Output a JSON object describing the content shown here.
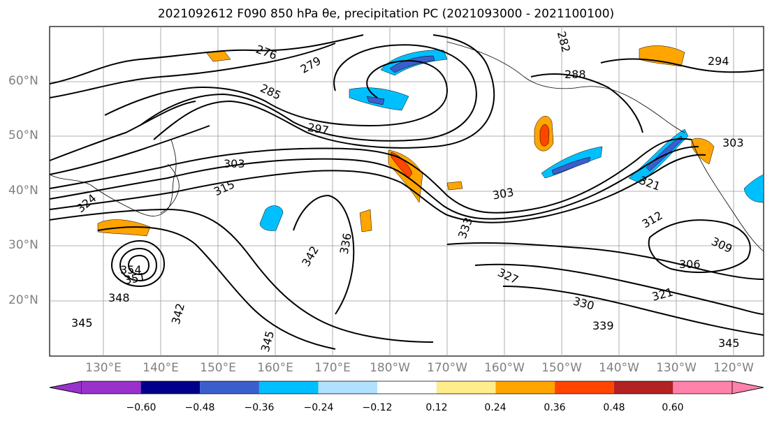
{
  "title": "2021092612 F090 850 hPa θe, precipitation PC (2021093000 - 2021100100)",
  "lat_labels": [
    "60°N",
    "50°N",
    "40°N",
    "30°N",
    "20°N"
  ],
  "lon_labels": [
    "130°E",
    "140°E",
    "150°E",
    "160°E",
    "170°E",
    "180°W",
    "170°W",
    "160°W",
    "150°W",
    "140°W",
    "130°W",
    "120°W"
  ],
  "contour_labels": [
    "276",
    "279",
    "282",
    "285",
    "288",
    "294",
    "297",
    "303",
    "303",
    "303",
    "315",
    "321",
    "312",
    "306",
    "309",
    "321",
    "324",
    "327",
    "330",
    "333",
    "336",
    "339",
    "342",
    "342",
    "345",
    "345",
    "345",
    "348",
    "351",
    "354"
  ],
  "colorbar": {
    "ticks": [
      "−0.60",
      "−0.48",
      "−0.36",
      "−0.24",
      "−0.12",
      "0.12",
      "0.24",
      "0.36",
      "0.48",
      "0.60"
    ],
    "colors": [
      "#9932cc",
      "#00008b",
      "#3a5fcd",
      "#00bfff",
      "#b0e2ff",
      "#ffffff",
      "#ffec8b",
      "#ffa500",
      "#ff4500",
      "#b22222",
      "#ff82ab"
    ]
  }
}
